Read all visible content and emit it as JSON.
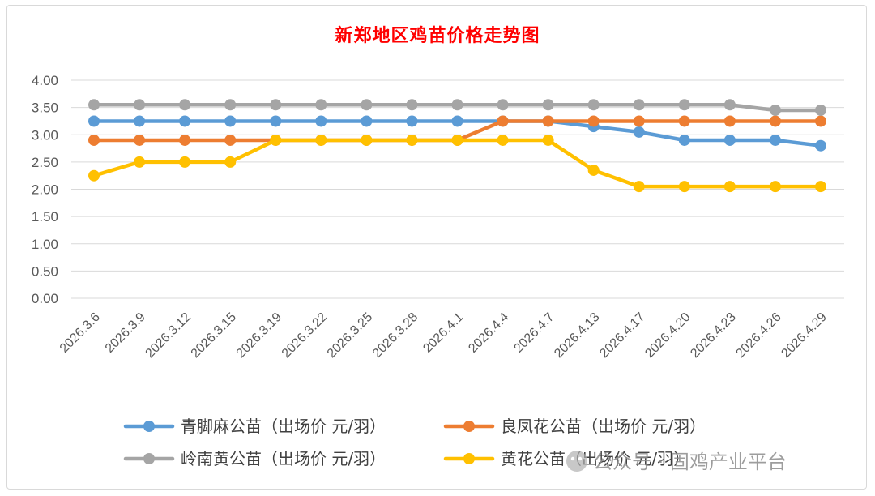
{
  "chart_data": {
    "type": "line",
    "title": "新郑地区鸡苗价格走势图",
    "xlabel": "",
    "ylabel": "",
    "ylim": [
      0,
      4
    ],
    "yticks": [
      "0.00",
      "0.50",
      "1.00",
      "1.50",
      "2.00",
      "2.50",
      "3.00",
      "3.50",
      "4.00"
    ],
    "categories": [
      "2026.3.6",
      "2026.3.9",
      "2026.3.12",
      "2026.3.15",
      "2026.3.19",
      "2026.3.22",
      "2026.3.25",
      "2026.3.28",
      "2026.4.1",
      "2026.4.4",
      "2026.4.7",
      "2026.4.13",
      "2026.4.17",
      "2026.4.20",
      "2026.4.23",
      "2026.4.26",
      "2026.4.29"
    ],
    "series": [
      {
        "name": "青脚麻公苗（出场价 元/羽）",
        "color": "#5b9bd5",
        "values": [
          3.25,
          3.25,
          3.25,
          3.25,
          3.25,
          3.25,
          3.25,
          3.25,
          3.25,
          3.25,
          3.25,
          3.15,
          3.05,
          2.9,
          2.9,
          2.9,
          2.8
        ]
      },
      {
        "name": "良凤花公苗（出场价 元/羽）",
        "color": "#ed7d31",
        "values": [
          2.9,
          2.9,
          2.9,
          2.9,
          2.9,
          2.9,
          2.9,
          2.9,
          2.9,
          3.25,
          3.25,
          3.25,
          3.25,
          3.25,
          3.25,
          3.25,
          3.25
        ]
      },
      {
        "name": "岭南黄公苗（出场价 元/羽）",
        "color": "#a5a5a5",
        "values": [
          3.55,
          3.55,
          3.55,
          3.55,
          3.55,
          3.55,
          3.55,
          3.55,
          3.55,
          3.55,
          3.55,
          3.55,
          3.55,
          3.55,
          3.55,
          3.45,
          3.45
        ]
      },
      {
        "name": "黄花公苗（出场价 元/羽）",
        "color": "#ffc000",
        "values": [
          2.25,
          2.5,
          2.5,
          2.5,
          2.9,
          2.9,
          2.9,
          2.9,
          2.9,
          2.9,
          2.9,
          2.35,
          2.05,
          2.05,
          2.05,
          2.05,
          2.05
        ]
      }
    ],
    "legend_position": "bottom"
  },
  "watermark": {
    "text": "公众号 · 固鸡产业平台",
    "icon": "wechat-icon"
  }
}
